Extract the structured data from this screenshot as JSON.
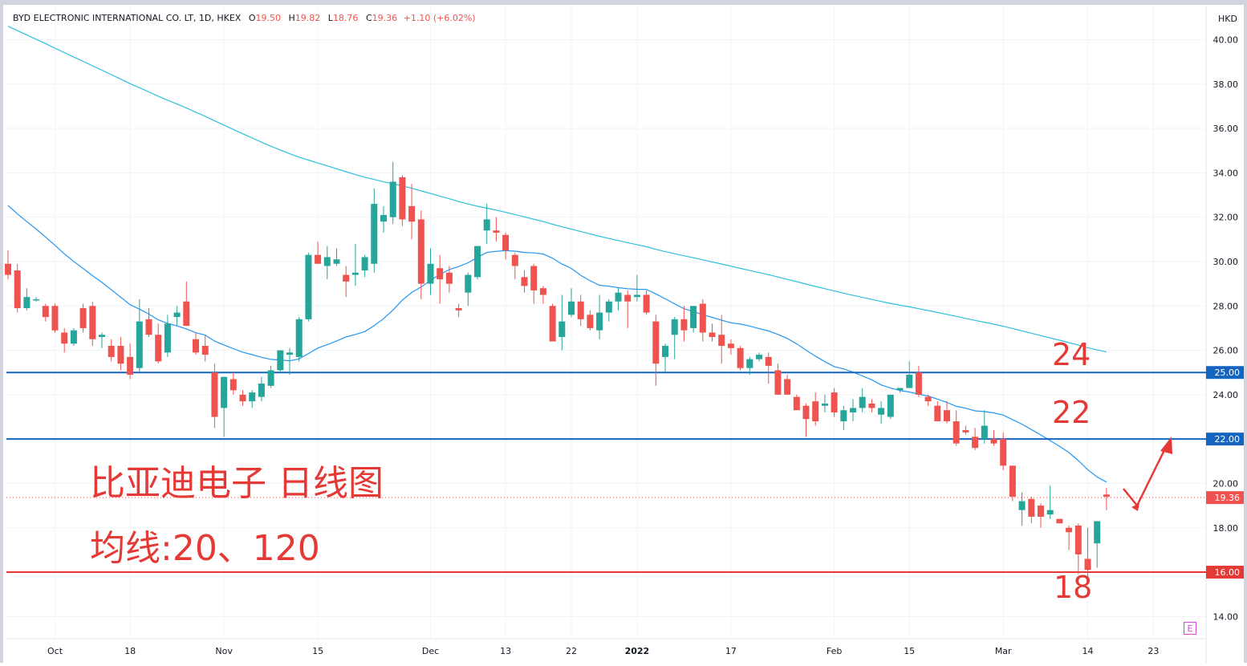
{
  "legend": {
    "symbol": "BYD ELECTRONIC INTERNATIONAL CO. LT, 1D, HKEX",
    "open_label": "O",
    "open": "19.50",
    "high_label": "H",
    "high": "19.82",
    "low_label": "L",
    "low": "18.76",
    "close_label": "C",
    "close": "19.36",
    "change": "+1.10 (+6.02%)"
  },
  "currency": "HKD",
  "annotations": {
    "title": "比亚迪电子 日线图",
    "ma_text": "均线:20、120",
    "level_24": "24",
    "level_22": "22",
    "level_18": "18"
  },
  "e_button": "E",
  "colors": {
    "up": "#26a69a",
    "down": "#ef5350",
    "ma20": "#2196f3",
    "ma120": "#2dc0dd",
    "hline_blue": "#1565c0",
    "hline_red": "#e53935",
    "annotation": "#e53935"
  },
  "chart_data": {
    "type": "candlestick",
    "ylim": [
      13,
      41.5
    ],
    "y_ticks": [
      "14.00",
      "16.00",
      "18.00",
      "20.00",
      "22.00",
      "24.00",
      "26.00",
      "28.00",
      "30.00",
      "32.00",
      "34.00",
      "36.00",
      "38.00",
      "40.00"
    ],
    "x_ticks": [
      {
        "label": "Oct",
        "i": 5
      },
      {
        "label": "18",
        "i": 13
      },
      {
        "label": "Nov",
        "i": 23
      },
      {
        "label": "15",
        "i": 33
      },
      {
        "label": "Dec",
        "i": 45
      },
      {
        "label": "13",
        "i": 53
      },
      {
        "label": "22",
        "i": 60
      },
      {
        "label": "2022",
        "i": 67
      },
      {
        "label": "17",
        "i": 77
      },
      {
        "label": "Feb",
        "i": 88
      },
      {
        "label": "15",
        "i": 96
      },
      {
        "label": "Mar",
        "i": 106
      },
      {
        "label": "14",
        "i": 115
      },
      {
        "label": "23",
        "i": 122
      }
    ],
    "horizontal_lines": [
      {
        "value": 25.0,
        "label": "25.00",
        "color": "blue"
      },
      {
        "value": 22.0,
        "label": "22.00",
        "color": "blue"
      },
      {
        "value": 16.0,
        "label": "16.00",
        "color": "red"
      }
    ],
    "last_price": {
      "value": 19.36,
      "label": "19.36"
    },
    "candles": [
      [
        29.9,
        30.5,
        29.2,
        29.4
      ],
      [
        29.6,
        29.9,
        27.7,
        27.9
      ],
      [
        27.9,
        28.8,
        27.8,
        28.4
      ],
      [
        28.3,
        28.4,
        28.2,
        28.3
      ],
      [
        28.0,
        28.1,
        27.3,
        27.5
      ],
      [
        28.0,
        28.1,
        26.8,
        26.9
      ],
      [
        26.8,
        27.0,
        25.9,
        26.3
      ],
      [
        26.3,
        27.0,
        26.2,
        26.9
      ],
      [
        27.9,
        28.1,
        26.8,
        27.0
      ],
      [
        28.0,
        28.2,
        26.2,
        26.5
      ],
      [
        26.6,
        26.8,
        26.1,
        26.7
      ],
      [
        26.2,
        26.5,
        25.5,
        25.7
      ],
      [
        26.2,
        26.6,
        25.1,
        25.4
      ],
      [
        25.7,
        26.3,
        24.7,
        24.9
      ],
      [
        25.2,
        28.3,
        25.0,
        27.3
      ],
      [
        27.4,
        27.9,
        26.6,
        26.7
      ],
      [
        26.7,
        27.2,
        25.4,
        25.5
      ],
      [
        25.9,
        27.6,
        25.7,
        27.2
      ],
      [
        27.5,
        28.0,
        27.1,
        27.7
      ],
      [
        28.2,
        29.1,
        27.1,
        27.1
      ],
      [
        26.5,
        26.8,
        25.8,
        25.9
      ],
      [
        26.2,
        26.7,
        25.5,
        25.8
      ],
      [
        25.0,
        25.4,
        22.5,
        23.0
      ],
      [
        23.4,
        24.8,
        22.1,
        24.8
      ],
      [
        24.7,
        25.0,
        24.0,
        24.2
      ],
      [
        24.0,
        24.2,
        23.5,
        23.7
      ],
      [
        23.7,
        24.2,
        23.4,
        24.1
      ],
      [
        23.9,
        24.8,
        23.7,
        24.5
      ],
      [
        24.4,
        25.3,
        24.3,
        25.1
      ],
      [
        25.1,
        26.0,
        25.0,
        26.0
      ],
      [
        25.8,
        26.1,
        24.9,
        25.9
      ],
      [
        25.7,
        27.5,
        25.5,
        27.4
      ],
      [
        27.4,
        30.4,
        27.3,
        30.3
      ],
      [
        30.3,
        30.9,
        29.9,
        29.9
      ],
      [
        29.8,
        30.7,
        29.2,
        30.2
      ],
      [
        29.9,
        30.6,
        29.8,
        30.1
      ],
      [
        29.4,
        29.8,
        28.4,
        29.1
      ],
      [
        29.4,
        30.8,
        28.9,
        29.5
      ],
      [
        29.6,
        30.3,
        29.3,
        30.2
      ],
      [
        29.9,
        33.3,
        29.5,
        32.6
      ],
      [
        31.8,
        32.5,
        31.3,
        32.1
      ],
      [
        32.0,
        34.5,
        31.7,
        33.6
      ],
      [
        33.8,
        33.9,
        31.6,
        31.9
      ],
      [
        32.5,
        33.5,
        31.0,
        31.8
      ],
      [
        31.9,
        32.3,
        28.3,
        29.0
      ],
      [
        29.0,
        30.6,
        28.5,
        29.9
      ],
      [
        29.7,
        30.3,
        28.1,
        29.2
      ],
      [
        29.5,
        29.8,
        28.6,
        29.0
      ],
      [
        27.9,
        28.1,
        27.5,
        27.8
      ],
      [
        28.6,
        29.5,
        28.0,
        29.4
      ],
      [
        29.3,
        30.7,
        29.2,
        30.7
      ],
      [
        31.4,
        32.6,
        30.8,
        31.9
      ],
      [
        31.4,
        32.0,
        30.9,
        31.3
      ],
      [
        31.2,
        31.3,
        30.1,
        30.5
      ],
      [
        30.3,
        30.4,
        29.2,
        29.8
      ],
      [
        29.3,
        29.6,
        28.6,
        28.9
      ],
      [
        29.8,
        29.9,
        28.1,
        28.7
      ],
      [
        28.8,
        28.9,
        28.1,
        28.5
      ],
      [
        28.0,
        28.1,
        26.4,
        26.4
      ],
      [
        26.6,
        28.5,
        26.0,
        27.3
      ],
      [
        27.6,
        28.8,
        27.5,
        28.2
      ],
      [
        28.2,
        28.5,
        27.1,
        27.4
      ],
      [
        27.6,
        27.8,
        26.9,
        27.0
      ],
      [
        26.9,
        28.5,
        26.5,
        27.7
      ],
      [
        27.7,
        28.3,
        27.3,
        28.2
      ],
      [
        28.2,
        28.8,
        27.8,
        28.6
      ],
      [
        28.5,
        28.7,
        27.0,
        28.2
      ],
      [
        28.4,
        29.4,
        28.2,
        28.5
      ],
      [
        28.5,
        28.7,
        27.6,
        27.7
      ],
      [
        27.3,
        27.6,
        24.4,
        25.4
      ],
      [
        25.7,
        26.3,
        25.0,
        26.2
      ],
      [
        26.7,
        27.5,
        25.6,
        27.4
      ],
      [
        27.4,
        28.0,
        26.4,
        26.9
      ],
      [
        27.0,
        27.8,
        26.8,
        28.0
      ],
      [
        28.1,
        28.3,
        26.4,
        26.8
      ],
      [
        26.8,
        27.2,
        26.4,
        26.6
      ],
      [
        26.7,
        27.6,
        25.4,
        26.2
      ],
      [
        26.3,
        26.5,
        25.8,
        26.1
      ],
      [
        26.1,
        26.2,
        25.1,
        25.2
      ],
      [
        25.2,
        25.7,
        24.9,
        25.6
      ],
      [
        25.6,
        25.9,
        25.5,
        25.8
      ],
      [
        25.7,
        25.9,
        24.5,
        25.3
      ],
      [
        25.1,
        25.4,
        24.1,
        24.0
      ],
      [
        24.7,
        24.9,
        24.0,
        24.0
      ],
      [
        23.9,
        24.0,
        23.3,
        23.3
      ],
      [
        23.5,
        23.6,
        22.1,
        22.9
      ],
      [
        23.7,
        24.1,
        22.6,
        22.8
      ],
      [
        23.5,
        24.0,
        23.2,
        23.6
      ],
      [
        24.1,
        24.3,
        23.0,
        23.2
      ],
      [
        22.8,
        23.5,
        22.4,
        23.3
      ],
      [
        23.2,
        23.8,
        22.8,
        23.4
      ],
      [
        23.4,
        24.3,
        23.2,
        23.9
      ],
      [
        23.6,
        23.8,
        23.2,
        23.4
      ],
      [
        23.1,
        23.7,
        22.7,
        23.4
      ],
      [
        23.0,
        24.0,
        22.9,
        24.0
      ],
      [
        24.2,
        24.3,
        24.1,
        24.3
      ],
      [
        24.3,
        25.5,
        24.3,
        24.9
      ],
      [
        25.0,
        25.3,
        23.9,
        24.0
      ],
      [
        23.9,
        24.0,
        23.5,
        23.7
      ],
      [
        23.5,
        23.7,
        22.8,
        22.8
      ],
      [
        23.3,
        23.7,
        22.7,
        22.8
      ],
      [
        22.8,
        23.3,
        21.7,
        21.8
      ],
      [
        22.4,
        22.6,
        22.2,
        22.3
      ],
      [
        22.1,
        22.5,
        21.5,
        21.6
      ],
      [
        22.0,
        23.3,
        21.8,
        22.6
      ],
      [
        22.0,
        22.4,
        21.7,
        21.8
      ],
      [
        22.0,
        22.3,
        20.6,
        20.8
      ],
      [
        20.8,
        20.8,
        19.2,
        19.4
      ],
      [
        18.8,
        19.6,
        18.1,
        19.2
      ],
      [
        19.3,
        19.4,
        18.2,
        18.5
      ],
      [
        19.0,
        19.1,
        18.0,
        18.5
      ],
      [
        18.6,
        19.9,
        18.4,
        18.8
      ],
      [
        18.4,
        18.4,
        18.2,
        18.2
      ],
      [
        18.0,
        18.1,
        17.0,
        17.8
      ],
      [
        18.1,
        18.2,
        15.9,
        16.8
      ],
      [
        16.6,
        18.0,
        15.7,
        16.1
      ],
      [
        17.3,
        18.3,
        16.2,
        18.3
      ],
      [
        19.5,
        19.8,
        18.8,
        19.4
      ]
    ]
  }
}
